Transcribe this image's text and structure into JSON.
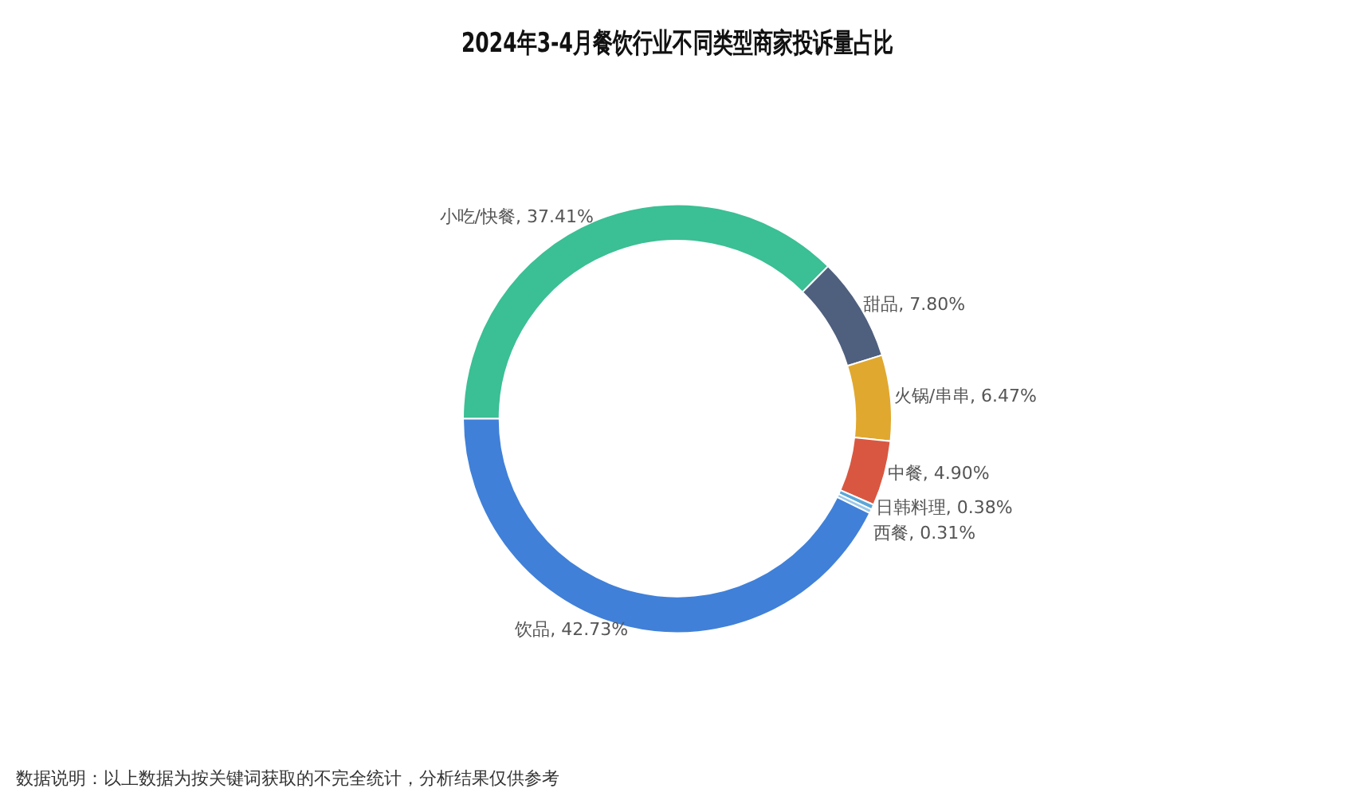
{
  "chart_data": {
    "type": "donut",
    "title": "2024年3-4月餐饮行业不同类型商家投诉量占比",
    "categories": [
      "小吃/快餐",
      "甜品",
      "火锅/串串",
      "中餐",
      "日韩料理",
      "西餐",
      "饮品"
    ],
    "values": [
      37.41,
      7.8,
      6.47,
      4.9,
      0.38,
      0.31,
      42.73
    ],
    "colors": [
      "#3bbf94",
      "#4f5f7e",
      "#e0a82e",
      "#d95740",
      "#5aa7d8",
      "#9cc8ea",
      "#4080d8"
    ],
    "value_labels": [
      "37.41%",
      "7.80%",
      "6.47%",
      "4.90%",
      "0.38%",
      "0.31%",
      "42.73%"
    ],
    "legend": false,
    "annotations": [
      "数据说明：以上数据为按关键词获取的不完全统计，分析结果仅供参考"
    ]
  }
}
